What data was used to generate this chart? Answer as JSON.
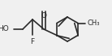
{
  "bg_color": "#f0f0f0",
  "line_color": "#2a2a2a",
  "text_color": "#2a2a2a",
  "bond_width": 1.2,
  "figsize": [
    1.38,
    0.69
  ],
  "dpi": 100,
  "xlim": [
    0,
    138
  ],
  "ylim": [
    0,
    69
  ]
}
